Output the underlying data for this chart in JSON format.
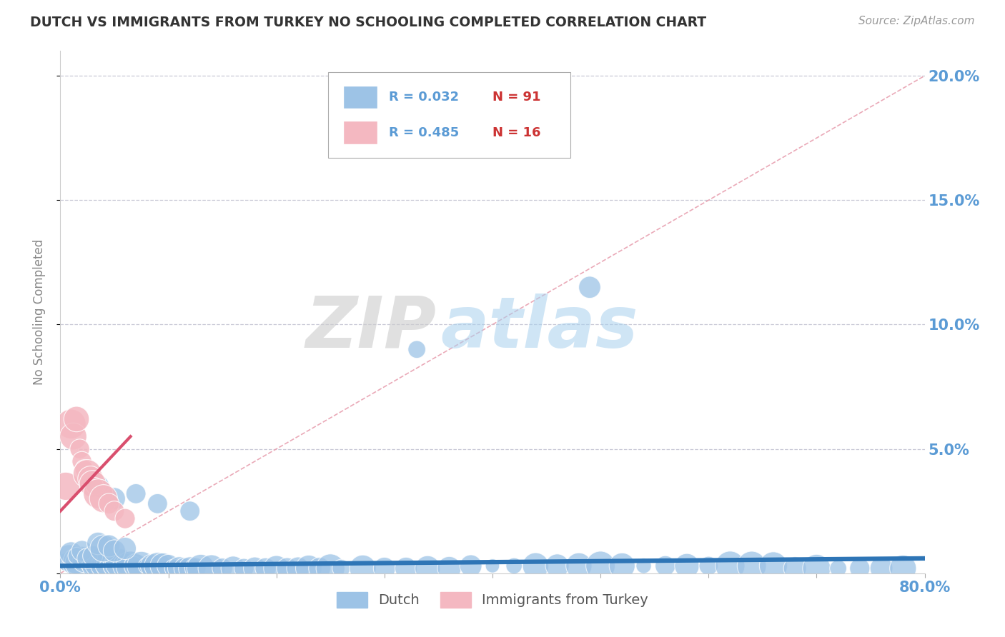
{
  "title": "DUTCH VS IMMIGRANTS FROM TURKEY NO SCHOOLING COMPLETED CORRELATION CHART",
  "source": "Source: ZipAtlas.com",
  "ylabel": "No Schooling Completed",
  "watermark_zip": "ZIP",
  "watermark_atlas": "atlas",
  "background_color": "#ffffff",
  "title_color": "#333333",
  "axis_label_color": "#5b9bd5",
  "grid_color": "#bbbbcc",
  "xlim": [
    0.0,
    0.8
  ],
  "ylim": [
    0.0,
    0.21
  ],
  "yticks": [
    0.0,
    0.05,
    0.1,
    0.15,
    0.2
  ],
  "ytick_labels": [
    "",
    "5.0%",
    "10.0%",
    "15.0%",
    "20.0%"
  ],
  "xtick_labels_show": [
    "0.0%",
    "80.0%"
  ],
  "dutch_color": "#9dc3e6",
  "turkey_color": "#f4b8c1",
  "trendline_dutch_color": "#2e75b6",
  "trendline_turkey_color": "#d94f6e",
  "diagonal_color": "#e8a0b0",
  "dutch_scatter_x": [
    0.005,
    0.008,
    0.012,
    0.015,
    0.018,
    0.02,
    0.022,
    0.025,
    0.028,
    0.03,
    0.032,
    0.035,
    0.038,
    0.04,
    0.042,
    0.045,
    0.048,
    0.05,
    0.055,
    0.058,
    0.06,
    0.065,
    0.068,
    0.07,
    0.075,
    0.08,
    0.085,
    0.09,
    0.095,
    0.1,
    0.105,
    0.11,
    0.115,
    0.12,
    0.125,
    0.13,
    0.14,
    0.15,
    0.16,
    0.17,
    0.18,
    0.19,
    0.2,
    0.21,
    0.22,
    0.23,
    0.24,
    0.25,
    0.26,
    0.28,
    0.3,
    0.32,
    0.34,
    0.36,
    0.38,
    0.4,
    0.42,
    0.44,
    0.46,
    0.48,
    0.5,
    0.52,
    0.54,
    0.56,
    0.58,
    0.6,
    0.62,
    0.64,
    0.66,
    0.68,
    0.7,
    0.72,
    0.74,
    0.76,
    0.78,
    0.01,
    0.015,
    0.02,
    0.025,
    0.03,
    0.33,
    0.49,
    0.035,
    0.04,
    0.045,
    0.05,
    0.06,
    0.035,
    0.05,
    0.07,
    0.09,
    0.12
  ],
  "dutch_scatter_y": [
    0.005,
    0.006,
    0.004,
    0.005,
    0.004,
    0.006,
    0.005,
    0.004,
    0.005,
    0.004,
    0.003,
    0.004,
    0.003,
    0.004,
    0.003,
    0.004,
    0.003,
    0.003,
    0.004,
    0.003,
    0.003,
    0.003,
    0.003,
    0.003,
    0.003,
    0.003,
    0.003,
    0.003,
    0.003,
    0.003,
    0.002,
    0.002,
    0.002,
    0.002,
    0.002,
    0.002,
    0.002,
    0.002,
    0.002,
    0.002,
    0.002,
    0.002,
    0.002,
    0.002,
    0.002,
    0.002,
    0.002,
    0.002,
    0.002,
    0.002,
    0.002,
    0.002,
    0.002,
    0.002,
    0.003,
    0.003,
    0.003,
    0.003,
    0.003,
    0.003,
    0.003,
    0.003,
    0.003,
    0.003,
    0.003,
    0.003,
    0.003,
    0.003,
    0.003,
    0.002,
    0.002,
    0.002,
    0.002,
    0.002,
    0.002,
    0.008,
    0.007,
    0.009,
    0.006,
    0.007,
    0.09,
    0.115,
    0.012,
    0.01,
    0.011,
    0.009,
    0.01,
    0.035,
    0.03,
    0.032,
    0.028,
    0.025
  ],
  "turkey_scatter_x": [
    0.005,
    0.01,
    0.012,
    0.015,
    0.018,
    0.02,
    0.022,
    0.025,
    0.028,
    0.03,
    0.032,
    0.035,
    0.04,
    0.045,
    0.05,
    0.06
  ],
  "turkey_scatter_y": [
    0.035,
    0.06,
    0.055,
    0.062,
    0.05,
    0.045,
    0.042,
    0.04,
    0.038,
    0.036,
    0.035,
    0.032,
    0.03,
    0.028,
    0.025,
    0.022
  ],
  "dutch_trendline_x": [
    0.0,
    0.8
  ],
  "dutch_trendline_y": [
    0.003,
    0.006
  ],
  "turkey_trendline_x": [
    0.0,
    0.065
  ],
  "turkey_trendline_y": [
    0.025,
    0.055
  ]
}
